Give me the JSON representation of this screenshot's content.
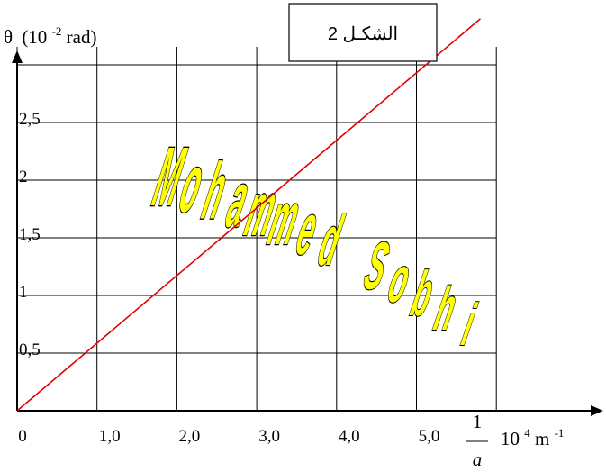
{
  "chart_data": {
    "type": "line",
    "x_tick_labels": [
      "0",
      "1,0",
      "2,0",
      "3,0",
      "4,0",
      "5,0"
    ],
    "x_ticks": [
      0,
      1,
      2,
      3,
      4,
      5
    ],
    "y_tick_labels": [
      "0,5",
      "1",
      "1,5",
      "2",
      "2,5"
    ],
    "y_ticks": [
      0.5,
      1,
      1.5,
      2,
      2.5
    ],
    "xlim": [
      0,
      6
    ],
    "ylim": [
      0,
      3.5
    ],
    "grid": true,
    "series": [
      {
        "x": [
          0,
          5.8
        ],
        "y": [
          0,
          3.4
        ],
        "color": "#e00000"
      }
    ],
    "ylabel": {
      "symbol": "θ",
      "unit_pre": "(10",
      "unit_exp": "-2",
      "unit_post": "rad)"
    },
    "xlabel": {
      "num": "1",
      "den": "a",
      "unit_pre": "10",
      "unit_exp": "4",
      "unit_post": "m",
      "unit_exp2": "-1"
    }
  },
  "figure_badge": "الشكـل 2",
  "watermark": "Mohammed Sobhi",
  "colors": {
    "line": "#e00000",
    "watermark_fill": "#ffff00",
    "watermark_stroke": "#000000"
  }
}
